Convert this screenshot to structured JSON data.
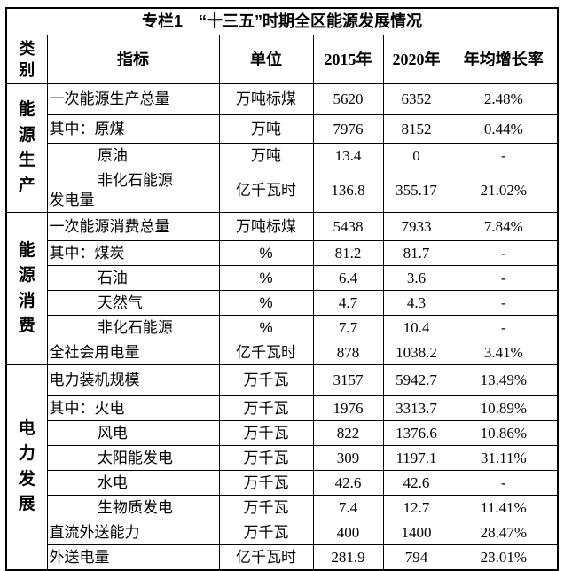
{
  "title": "专栏1　“十三五”时期全区能源发展情况",
  "columns": {
    "category": "类别",
    "indicator": "指标",
    "unit": "单位",
    "y2015": "2015年",
    "y2020": "2020年",
    "growth": "年均增长率"
  },
  "categories": [
    {
      "label": "能源生产"
    },
    {
      "label": "能源消费"
    },
    {
      "label": "电力发展"
    }
  ],
  "rows": [
    {
      "indicator": "一次能源生产总量",
      "unit": "万吨标煤",
      "y2015": "5620",
      "y2020": "6352",
      "growth": "2.48%"
    },
    {
      "indicator": "其中：原煤",
      "unit": "万吨",
      "y2015": "7976",
      "y2020": "8152",
      "growth": "0.44%"
    },
    {
      "indicator": "原油",
      "unit": "万吨",
      "y2015": "13.4",
      "y2020": "0",
      "growth": "-"
    },
    {
      "indicator": "非化石能源\n发电量",
      "unit": "亿千瓦时",
      "y2015": "136.8",
      "y2020": "355.17",
      "growth": "21.02%"
    },
    {
      "indicator": "一次能源消费总量",
      "unit": "万吨标煤",
      "y2015": "5438",
      "y2020": "7933",
      "growth": "7.84%"
    },
    {
      "indicator": "其中：煤炭",
      "unit": "%",
      "y2015": "81.2",
      "y2020": "81.7",
      "growth": "-"
    },
    {
      "indicator": "石油",
      "unit": "%",
      "y2015": "6.4",
      "y2020": "3.6",
      "growth": "-"
    },
    {
      "indicator": "天然气",
      "unit": "%",
      "y2015": "4.7",
      "y2020": "4.3",
      "growth": "-"
    },
    {
      "indicator": "非化石能源",
      "unit": "%",
      "y2015": "7.7",
      "y2020": "10.4",
      "growth": "-"
    },
    {
      "indicator": "全社会用电量",
      "unit": "亿千瓦时",
      "y2015": "878",
      "y2020": "1038.2",
      "growth": "3.41%"
    },
    {
      "indicator": "电力装机规模",
      "unit": "万千瓦",
      "y2015": "3157",
      "y2020": "5942.7",
      "growth": "13.49%"
    },
    {
      "indicator": "其中：火电",
      "unit": "万千瓦",
      "y2015": "1976",
      "y2020": "3313.7",
      "growth": "10.89%"
    },
    {
      "indicator": "风电",
      "unit": "万千瓦",
      "y2015": "822",
      "y2020": "1376.6",
      "growth": "10.86%"
    },
    {
      "indicator": "太阳能发电",
      "unit": "万千瓦",
      "y2015": "309",
      "y2020": "1197.1",
      "growth": "31.11%"
    },
    {
      "indicator": "水电",
      "unit": "万千瓦",
      "y2015": "42.6",
      "y2020": "42.6",
      "growth": "-"
    },
    {
      "indicator": "生物质发电",
      "unit": "万千瓦",
      "y2015": "7.4",
      "y2020": "12.7",
      "growth": "11.41%"
    },
    {
      "indicator": "直流外送能力",
      "unit": "万千瓦",
      "y2015": "400",
      "y2020": "1400",
      "growth": "28.47%"
    },
    {
      "indicator": "外送电量",
      "unit": "亿千瓦时",
      "y2015": "281.9",
      "y2020": "794",
      "growth": "23.01%"
    }
  ],
  "colors": {
    "border": "#000000",
    "text": "#000000",
    "background": "#ffffff"
  }
}
